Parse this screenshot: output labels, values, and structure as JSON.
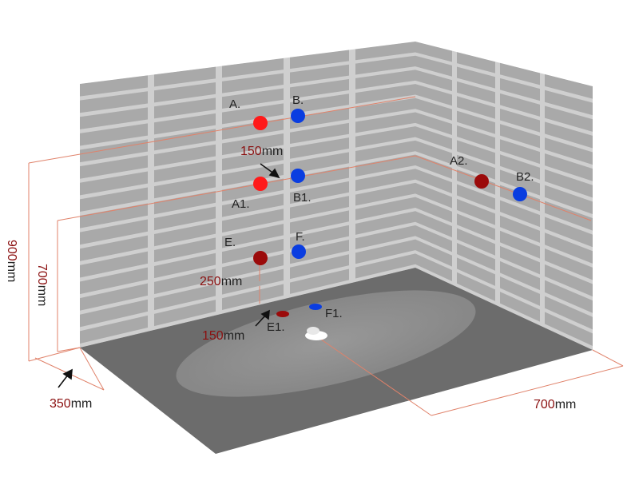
{
  "points": [
    {
      "id": "A",
      "label": "A.",
      "color": "#ff1a1a"
    },
    {
      "id": "B",
      "label": "B.",
      "color": "#0a3de0"
    },
    {
      "id": "A1",
      "label": "A1.",
      "color": "#ff1a1a"
    },
    {
      "id": "B1",
      "label": "B1.",
      "color": "#0a3de0"
    },
    {
      "id": "E",
      "label": "E.",
      "color": "#9b0a0a"
    },
    {
      "id": "F",
      "label": "F.",
      "color": "#0a3de0"
    },
    {
      "id": "A2",
      "label": "A2.",
      "color": "#9b0a0a"
    },
    {
      "id": "B2",
      "label": "B2.",
      "color": "#0a3de0"
    },
    {
      "id": "E1",
      "label": "E1.",
      "color": "#9b0a0a"
    },
    {
      "id": "F1",
      "label": "F1.",
      "color": "#0a3de0"
    }
  ],
  "dimensions": {
    "spacing_150_top": {
      "value": "150",
      "unit": "mm"
    },
    "height_250": {
      "value": "250",
      "unit": "mm"
    },
    "spacing_150_floor": {
      "value": "150",
      "unit": "mm"
    },
    "height_900": {
      "value": "900",
      "unit": "mm"
    },
    "height_700": {
      "value": "700",
      "unit": "mm"
    },
    "depth_350": {
      "value": "350",
      "unit": "mm"
    },
    "width_700": {
      "value": "700",
      "unit": "mm"
    }
  },
  "colors": {
    "wall_background": "#cfcfcf",
    "tile": "#a9a9a9",
    "floor": "#6c6c6c",
    "spray_area": "#9a9a9a",
    "dimension_line": "#e0826a",
    "dimension_number": "#8b1010",
    "dimension_unit": "#222222"
  }
}
